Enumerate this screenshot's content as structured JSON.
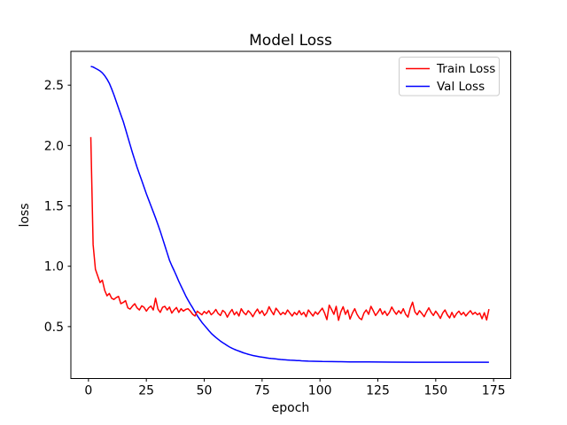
{
  "figure": {
    "title": "Model Loss",
    "background_color": "#ffffff",
    "spine_color": "#000000",
    "text_color": "#000000"
  },
  "legend": {
    "position": "upper right",
    "entries": [
      {
        "label": "Train Loss",
        "color": "#ff0000"
      },
      {
        "label": "Val Loss",
        "color": "#0000ff"
      }
    ]
  },
  "chart_data": {
    "type": "line",
    "title": "Model Loss",
    "xlabel": "epoch",
    "ylabel": "loss",
    "xlim": [
      -7.6,
      182.4
    ],
    "ylim": [
      0.07,
      2.78
    ],
    "xticks": [
      0,
      25,
      50,
      75,
      100,
      125,
      150,
      175
    ],
    "yticks": [
      0.5,
      1.0,
      1.5,
      2.0,
      2.5
    ],
    "grid": false,
    "legend_position": "upper right",
    "series": [
      {
        "name": "Train Loss",
        "color": "#ff0000",
        "line_width": 1.5,
        "points": [
          [
            1,
            2.07
          ],
          [
            2,
            1.18
          ],
          [
            3,
            0.975
          ],
          [
            4,
            0.92
          ],
          [
            5,
            0.865
          ],
          [
            6,
            0.885
          ],
          [
            7,
            0.8
          ],
          [
            8,
            0.755
          ],
          [
            9,
            0.775
          ],
          [
            10,
            0.735
          ],
          [
            11,
            0.725
          ],
          [
            12,
            0.74
          ],
          [
            13,
            0.75
          ],
          [
            14,
            0.69
          ],
          [
            15,
            0.7
          ],
          [
            16,
            0.715
          ],
          [
            17,
            0.655
          ],
          [
            18,
            0.645
          ],
          [
            19,
            0.67
          ],
          [
            20,
            0.69
          ],
          [
            21,
            0.655
          ],
          [
            22,
            0.638
          ],
          [
            23,
            0.672
          ],
          [
            24,
            0.66
          ],
          [
            25,
            0.628
          ],
          [
            26,
            0.655
          ],
          [
            27,
            0.67
          ],
          [
            28,
            0.638
          ],
          [
            29,
            0.735
          ],
          [
            30,
            0.645
          ],
          [
            31,
            0.618
          ],
          [
            32,
            0.66
          ],
          [
            33,
            0.668
          ],
          [
            34,
            0.638
          ],
          [
            35,
            0.662
          ],
          [
            36,
            0.612
          ],
          [
            37,
            0.638
          ],
          [
            38,
            0.658
          ],
          [
            39,
            0.618
          ],
          [
            40,
            0.648
          ],
          [
            41,
            0.628
          ],
          [
            42,
            0.642
          ],
          [
            43,
            0.648
          ],
          [
            44,
            0.628
          ],
          [
            45,
            0.602
          ],
          [
            46,
            0.588
          ],
          [
            47,
            0.628
          ],
          [
            48,
            0.612
          ],
          [
            49,
            0.598
          ],
          [
            50,
            0.625
          ],
          [
            51,
            0.608
          ],
          [
            52,
            0.632
          ],
          [
            53,
            0.598
          ],
          [
            54,
            0.615
          ],
          [
            55,
            0.642
          ],
          [
            56,
            0.608
          ],
          [
            57,
            0.592
          ],
          [
            58,
            0.635
          ],
          [
            59,
            0.618
          ],
          [
            60,
            0.578
          ],
          [
            61,
            0.615
          ],
          [
            62,
            0.642
          ],
          [
            63,
            0.598
          ],
          [
            64,
            0.622
          ],
          [
            65,
            0.588
          ],
          [
            66,
            0.648
          ],
          [
            67,
            0.618
          ],
          [
            68,
            0.598
          ],
          [
            69,
            0.632
          ],
          [
            70,
            0.612
          ],
          [
            71,
            0.582
          ],
          [
            72,
            0.618
          ],
          [
            73,
            0.645
          ],
          [
            74,
            0.608
          ],
          [
            75,
            0.632
          ],
          [
            76,
            0.592
          ],
          [
            77,
            0.615
          ],
          [
            78,
            0.665
          ],
          [
            79,
            0.628
          ],
          [
            80,
            0.598
          ],
          [
            81,
            0.652
          ],
          [
            82,
            0.628
          ],
          [
            83,
            0.598
          ],
          [
            84,
            0.618
          ],
          [
            85,
            0.602
          ],
          [
            86,
            0.638
          ],
          [
            87,
            0.612
          ],
          [
            88,
            0.588
          ],
          [
            89,
            0.618
          ],
          [
            90,
            0.598
          ],
          [
            91,
            0.632
          ],
          [
            92,
            0.598
          ],
          [
            93,
            0.618
          ],
          [
            94,
            0.582
          ],
          [
            95,
            0.638
          ],
          [
            96,
            0.612
          ],
          [
            97,
            0.588
          ],
          [
            98,
            0.622
          ],
          [
            99,
            0.602
          ],
          [
            100,
            0.628
          ],
          [
            101,
            0.652
          ],
          [
            102,
            0.612
          ],
          [
            103,
            0.558
          ],
          [
            104,
            0.678
          ],
          [
            105,
            0.642
          ],
          [
            106,
            0.602
          ],
          [
            107,
            0.668
          ],
          [
            108,
            0.552
          ],
          [
            109,
            0.622
          ],
          [
            110,
            0.665
          ],
          [
            111,
            0.602
          ],
          [
            112,
            0.638
          ],
          [
            113,
            0.562
          ],
          [
            114,
            0.612
          ],
          [
            115,
            0.648
          ],
          [
            116,
            0.602
          ],
          [
            117,
            0.572
          ],
          [
            118,
            0.558
          ],
          [
            119,
            0.612
          ],
          [
            120,
            0.638
          ],
          [
            121,
            0.602
          ],
          [
            122,
            0.668
          ],
          [
            123,
            0.632
          ],
          [
            124,
            0.592
          ],
          [
            125,
            0.618
          ],
          [
            126,
            0.648
          ],
          [
            127,
            0.602
          ],
          [
            128,
            0.628
          ],
          [
            129,
            0.592
          ],
          [
            130,
            0.618
          ],
          [
            131,
            0.662
          ],
          [
            132,
            0.628
          ],
          [
            133,
            0.602
          ],
          [
            134,
            0.632
          ],
          [
            135,
            0.608
          ],
          [
            136,
            0.648
          ],
          [
            137,
            0.602
          ],
          [
            138,
            0.578
          ],
          [
            139,
            0.652
          ],
          [
            140,
            0.702
          ],
          [
            141,
            0.622
          ],
          [
            142,
            0.598
          ],
          [
            143,
            0.632
          ],
          [
            144,
            0.608
          ],
          [
            145,
            0.582
          ],
          [
            146,
            0.622
          ],
          [
            147,
            0.655
          ],
          [
            148,
            0.618
          ],
          [
            149,
            0.592
          ],
          [
            150,
            0.628
          ],
          [
            151,
            0.602
          ],
          [
            152,
            0.568
          ],
          [
            153,
            0.612
          ],
          [
            154,
            0.638
          ],
          [
            155,
            0.598
          ],
          [
            156,
            0.572
          ],
          [
            157,
            0.618
          ],
          [
            158,
            0.575
          ],
          [
            159,
            0.608
          ],
          [
            160,
            0.628
          ],
          [
            161,
            0.598
          ],
          [
            162,
            0.618
          ],
          [
            163,
            0.588
          ],
          [
            164,
            0.612
          ],
          [
            165,
            0.632
          ],
          [
            166,
            0.602
          ],
          [
            167,
            0.618
          ],
          [
            168,
            0.598
          ],
          [
            169,
            0.612
          ],
          [
            170,
            0.565
          ],
          [
            171,
            0.615
          ],
          [
            172,
            0.555
          ],
          [
            173,
            0.645
          ]
        ]
      },
      {
        "name": "Val Loss",
        "color": "#0000ff",
        "line_width": 1.5,
        "points": [
          [
            1,
            2.655
          ],
          [
            2,
            2.65
          ],
          [
            3,
            2.64
          ],
          [
            4,
            2.63
          ],
          [
            5,
            2.618
          ],
          [
            6,
            2.602
          ],
          [
            7,
            2.578
          ],
          [
            8,
            2.55
          ],
          [
            9,
            2.515
          ],
          [
            10,
            2.47
          ],
          [
            11,
            2.42
          ],
          [
            12,
            2.365
          ],
          [
            13,
            2.31
          ],
          [
            14,
            2.255
          ],
          [
            15,
            2.2
          ],
          [
            16,
            2.135
          ],
          [
            17,
            2.07
          ],
          [
            18,
            2.005
          ],
          [
            19,
            1.94
          ],
          [
            20,
            1.88
          ],
          [
            21,
            1.82
          ],
          [
            22,
            1.765
          ],
          [
            23,
            1.71
          ],
          [
            24,
            1.655
          ],
          [
            25,
            1.6
          ],
          [
            26,
            1.55
          ],
          [
            27,
            1.5
          ],
          [
            28,
            1.45
          ],
          [
            29,
            1.4
          ],
          [
            30,
            1.345
          ],
          [
            31,
            1.29
          ],
          [
            32,
            1.23
          ],
          [
            33,
            1.17
          ],
          [
            34,
            1.11
          ],
          [
            35,
            1.05
          ],
          [
            36,
            1.005
          ],
          [
            37,
            0.965
          ],
          [
            38,
            0.92
          ],
          [
            39,
            0.875
          ],
          [
            40,
            0.835
          ],
          [
            41,
            0.795
          ],
          [
            42,
            0.755
          ],
          [
            43,
            0.72
          ],
          [
            44,
            0.687
          ],
          [
            45,
            0.655
          ],
          [
            46,
            0.622
          ],
          [
            47,
            0.59
          ],
          [
            48,
            0.562
          ],
          [
            49,
            0.535
          ],
          [
            50,
            0.512
          ],
          [
            51,
            0.49
          ],
          [
            52,
            0.467
          ],
          [
            53,
            0.445
          ],
          [
            54,
            0.427
          ],
          [
            55,
            0.41
          ],
          [
            56,
            0.395
          ],
          [
            57,
            0.38
          ],
          [
            58,
            0.367
          ],
          [
            59,
            0.355
          ],
          [
            60,
            0.342
          ],
          [
            61,
            0.33
          ],
          [
            62,
            0.321
          ],
          [
            63,
            0.312
          ],
          [
            64,
            0.304
          ],
          [
            65,
            0.297
          ],
          [
            66,
            0.29
          ],
          [
            67,
            0.283
          ],
          [
            68,
            0.277
          ],
          [
            69,
            0.271
          ],
          [
            70,
            0.266
          ],
          [
            71,
            0.261
          ],
          [
            72,
            0.257
          ],
          [
            73,
            0.253
          ],
          [
            74,
            0.25
          ],
          [
            75,
            0.247
          ],
          [
            76,
            0.244
          ],
          [
            77,
            0.241
          ],
          [
            78,
            0.238
          ],
          [
            79,
            0.236
          ],
          [
            80,
            0.234
          ],
          [
            81,
            0.232
          ],
          [
            82,
            0.23
          ],
          [
            83,
            0.228
          ],
          [
            84,
            0.226
          ],
          [
            85,
            0.225
          ],
          [
            86,
            0.223
          ],
          [
            87,
            0.222
          ],
          [
            88,
            0.221
          ],
          [
            89,
            0.22
          ],
          [
            90,
            0.219
          ],
          [
            91,
            0.218
          ],
          [
            92,
            0.217
          ],
          [
            93,
            0.216
          ],
          [
            94,
            0.215
          ],
          [
            95,
            0.214
          ],
          [
            97,
            0.213
          ],
          [
            99,
            0.212
          ],
          [
            101,
            0.211
          ],
          [
            105,
            0.21
          ],
          [
            109,
            0.209
          ],
          [
            113,
            0.208
          ],
          [
            121,
            0.207
          ],
          [
            131,
            0.206
          ],
          [
            141,
            0.205
          ],
          [
            151,
            0.205
          ],
          [
            161,
            0.205
          ],
          [
            173,
            0.205
          ]
        ]
      }
    ]
  }
}
